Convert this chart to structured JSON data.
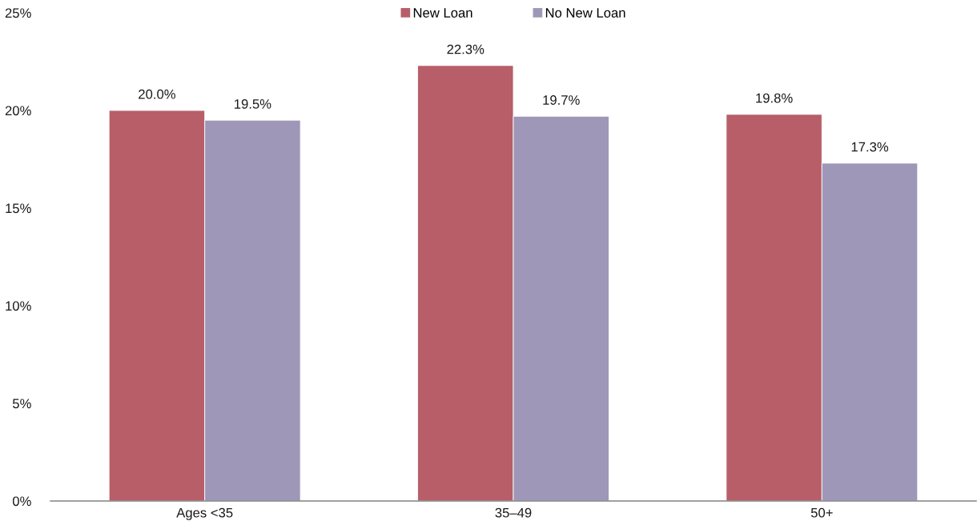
{
  "chart_data": {
    "type": "bar",
    "categories": [
      "Ages <35",
      "35–49",
      "50+"
    ],
    "series": [
      {
        "name": "New Loan",
        "color": "#b75e69",
        "values": [
          20.0,
          22.3,
          19.8
        ],
        "value_labels": [
          "20.0%",
          "22.3%",
          "19.8%"
        ]
      },
      {
        "name": "No New Loan",
        "color": "#9e97b8",
        "values": [
          19.5,
          19.7,
          17.3
        ],
        "value_labels": [
          "19.5%",
          "19.7%",
          "17.3%"
        ]
      }
    ],
    "ylim": [
      0,
      25
    ],
    "yticks": [
      {
        "value": 0,
        "label": "0%"
      },
      {
        "value": 5,
        "label": "5%"
      },
      {
        "value": 10,
        "label": "10%"
      },
      {
        "value": 15,
        "label": "15%"
      },
      {
        "value": 20,
        "label": "20%"
      },
      {
        "value": 25,
        "label": "25%"
      }
    ],
    "grid": false,
    "legend": "top"
  }
}
